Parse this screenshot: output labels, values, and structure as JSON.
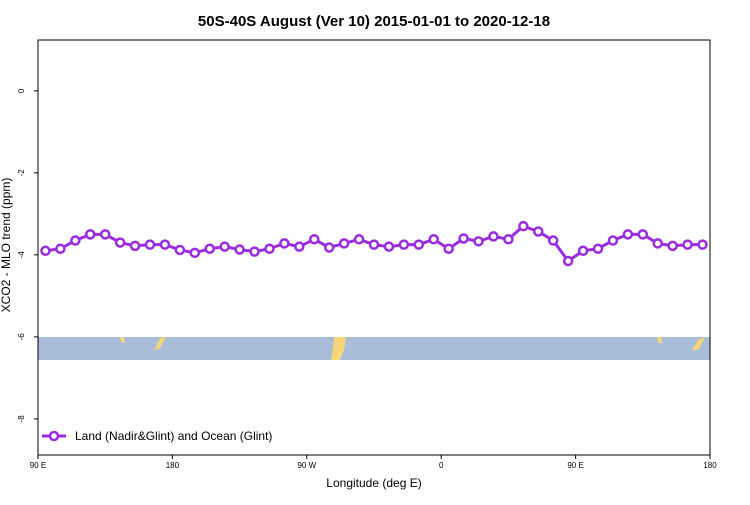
{
  "chart_data": {
    "type": "line",
    "title": "50S-40S August (Ver 10)   2015-01-01 to 2020-12-18",
    "xlabel": "Longitude (deg E)",
    "ylabel": "XCO2 - MLO trend (ppm)",
    "x": [
      95,
      105,
      115,
      125,
      135,
      145,
      155,
      165,
      175,
      185,
      195,
      205,
      215,
      225,
      235,
      245,
      255,
      265,
      275,
      285,
      295,
      305,
      315,
      325,
      335,
      345,
      355,
      365,
      375,
      385,
      395,
      405,
      415,
      425,
      435,
      445,
      455,
      465,
      475,
      485,
      495,
      505,
      515,
      525,
      535
    ],
    "series": [
      {
        "name": "Land (Nadir&Glint) and Ocean (Glint)",
        "color": "#9b2be0",
        "values": [
          -3.9,
          -3.85,
          -3.65,
          -3.5,
          -3.5,
          -3.7,
          -3.78,
          -3.75,
          -3.75,
          -3.88,
          -3.95,
          -3.85,
          -3.8,
          -3.87,
          -3.92,
          -3.85,
          -3.72,
          -3.8,
          -3.62,
          -3.82,
          -3.72,
          -3.62,
          -3.75,
          -3.8,
          -3.75,
          -3.75,
          -3.62,
          -3.85,
          -3.6,
          -3.67,
          -3.55,
          -3.62,
          -3.3,
          -3.43,
          -3.65,
          -4.15,
          -3.9,
          -3.85,
          -3.65,
          -3.5,
          -3.5,
          -3.72,
          -3.78,
          -3.75,
          -3.75
        ]
      }
    ],
    "xlim": [
      90,
      540
    ],
    "xticks": [
      {
        "value": 90,
        "label": "90 E"
      },
      {
        "value": 180,
        "label": "180"
      },
      {
        "value": 270,
        "label": "90 W"
      },
      {
        "value": 360,
        "label": "0"
      },
      {
        "value": 450,
        "label": "90 E"
      },
      {
        "value": 540,
        "label": "180"
      }
    ],
    "ylim": [
      -8.88,
      1.24
    ],
    "yticks": [
      0,
      -2,
      -4,
      -6,
      -8
    ],
    "legend": "bottom-left"
  }
}
